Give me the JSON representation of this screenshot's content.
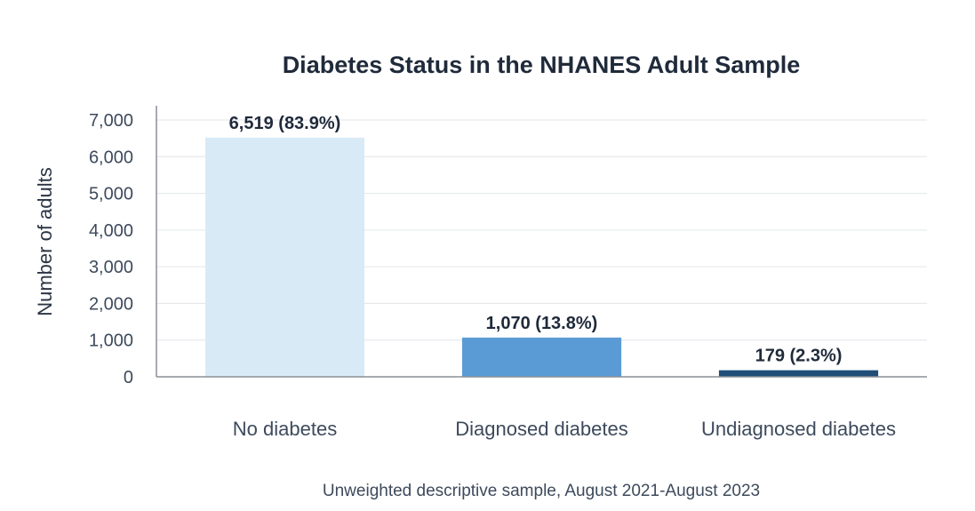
{
  "chart_data": {
    "type": "bar",
    "title": "Diabetes Status in the NHANES Adult Sample",
    "xlabel": "",
    "ylabel": "Number of adults",
    "categories": [
      "No diabetes",
      "Diagnosed diabetes",
      "Undiagnosed diabetes"
    ],
    "values": [
      6519,
      1070,
      179
    ],
    "data_labels": [
      "6,519 (83.9%)",
      "1,070 (13.8%)",
      "179 (2.3%)"
    ],
    "bar_colors": [
      "#d9eaf7",
      "#5b9bd5",
      "#1f4e79"
    ],
    "ylim": [
      0,
      7000
    ],
    "yticks": [
      0,
      1000,
      2000,
      3000,
      4000,
      5000,
      6000,
      7000
    ],
    "ytick_labels": [
      "0",
      "1,000",
      "2,000",
      "3,000",
      "4,000",
      "5,000",
      "6,000",
      "7,000"
    ],
    "grid": true,
    "legend": "none",
    "footnote": "Unweighted descriptive sample, August 2021-August 2023"
  }
}
